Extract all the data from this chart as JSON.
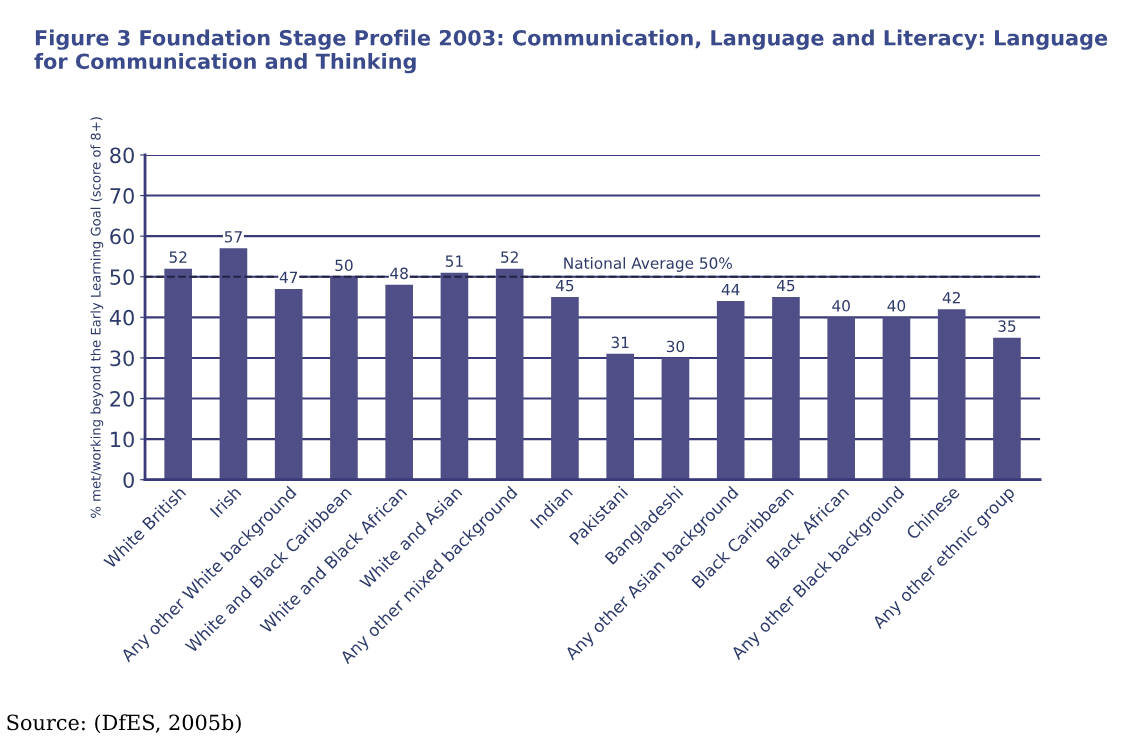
{
  "chart_data": {
    "type": "bar",
    "title": "Figure 3 Foundation Stage Profile 2003: Communication, Language and Literacy: Language for Communication and Thinking",
    "ylabel": "% met/working beyond the Early Learning Goal (score of 8+)",
    "categories": [
      "White British",
      "Irish",
      "Any other White background",
      "White and Black Caribbean",
      "White and Black African",
      "White and Asian",
      "Any other mixed background",
      "Indian",
      "Pakistani",
      "Bangladeshi",
      "Any other Asian background",
      "Black Caribbean",
      "Black African",
      "Any other Black background",
      "Chinese",
      "Any other ethnic group"
    ],
    "values": [
      52,
      57,
      47,
      50,
      48,
      51,
      52,
      45,
      31,
      30,
      44,
      45,
      40,
      40,
      42,
      35
    ],
    "color": "#4f4e86",
    "data_labels": true,
    "ylim": [
      0,
      80
    ],
    "yticks": [
      0,
      10,
      20,
      30,
      40,
      50,
      60,
      70,
      80
    ],
    "grid": "y",
    "ref_lines": [
      {
        "axis": "y",
        "value": 50,
        "label": "National Average 50%",
        "line_style": "dashed",
        "color": "#222244"
      }
    ],
    "annotations": [
      "Source: (DfES, 2005b)"
    ]
  }
}
